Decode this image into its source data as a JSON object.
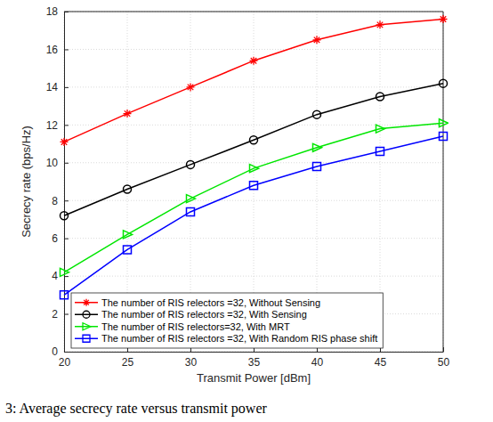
{
  "chart_data": {
    "type": "line",
    "xlabel": "Transmit Power [dBm]",
    "ylabel": "Secrecy rate (bps/Hz)",
    "caption": "3: Average secrecy rate versus transmit power",
    "x": [
      20,
      25,
      30,
      35,
      40,
      45,
      50
    ],
    "xlim": [
      20,
      50
    ],
    "xticks": [
      20,
      25,
      30,
      35,
      40,
      45,
      50
    ],
    "ylim": [
      0,
      18
    ],
    "yticks": [
      0,
      2,
      4,
      6,
      8,
      10,
      12,
      14,
      16,
      18
    ],
    "grid": true,
    "legend": "lower left",
    "series": [
      {
        "name": "The number of RIS relectors =32, Without Sensing",
        "color": "#ff0000",
        "marker": "asterisk",
        "line_style": "solid",
        "values": [
          11.1,
          12.6,
          14.0,
          15.4,
          16.5,
          17.3,
          17.6
        ]
      },
      {
        "name": "The number of RIS relectors =32, With Sensing",
        "color": "#000000",
        "marker": "circle",
        "line_style": "solid",
        "values": [
          7.2,
          8.6,
          9.9,
          11.2,
          12.55,
          13.5,
          14.2
        ]
      },
      {
        "name": "The number of RIS relectors=32, With MRT",
        "color": "#00e600",
        "marker": "triangle-right",
        "line_style": "solid",
        "values": [
          4.2,
          6.2,
          8.1,
          9.7,
          10.8,
          11.8,
          12.1
        ]
      },
      {
        "name": "The number of RIS relectors =32, With Random RIS phase shift",
        "color": "#0000ff",
        "marker": "square",
        "line_style": "solid",
        "values": [
          3.0,
          5.4,
          7.4,
          8.8,
          9.8,
          10.6,
          11.4
        ]
      }
    ]
  }
}
